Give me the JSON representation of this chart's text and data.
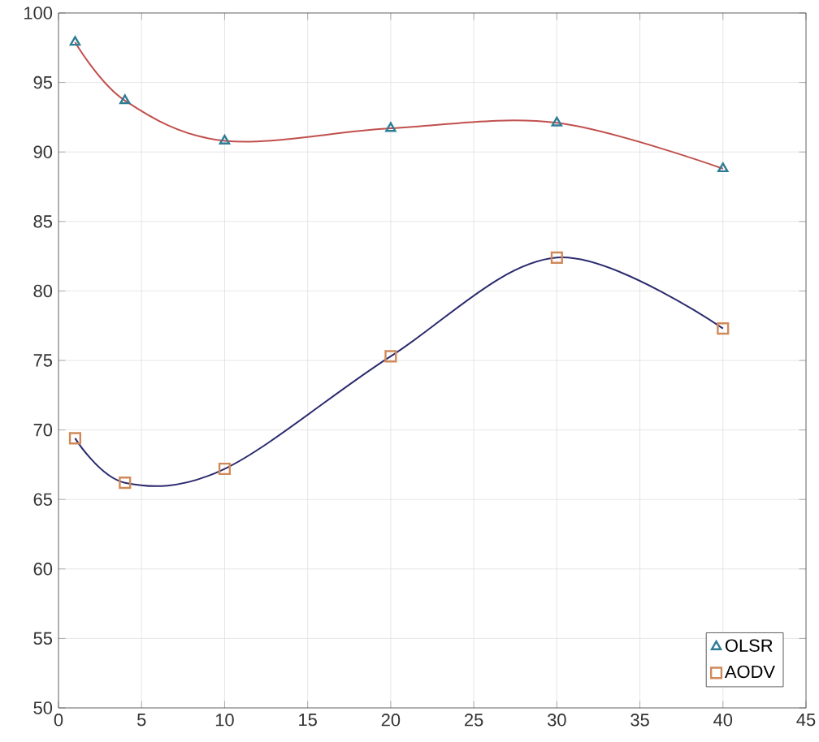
{
  "chart_data": {
    "type": "line",
    "xlim": [
      0,
      45
    ],
    "ylim": [
      50,
      100
    ],
    "xticks": [
      0,
      5,
      10,
      15,
      20,
      25,
      30,
      35,
      40,
      45
    ],
    "yticks": [
      50,
      55,
      60,
      65,
      70,
      75,
      80,
      85,
      90,
      95,
      100
    ],
    "grid": true,
    "legend": "bottom right",
    "series": [
      {
        "color": "#c0504d",
        "x": [
          1,
          4,
          10,
          20,
          30,
          40
        ],
        "values": [
          97.9,
          93.7,
          90.8,
          91.7,
          92.1,
          88.8
        ]
      },
      {
        "color": "#2a2a6e",
        "x": [
          1,
          4,
          10,
          20,
          30,
          40
        ],
        "values": [
          69.4,
          66.2,
          67.2,
          75.3,
          82.4,
          77.3
        ]
      },
      {
        "type": "scatter",
        "name": "OLSR",
        "color": "#2e7c96",
        "marker": "triangle",
        "x": [
          1,
          4,
          10,
          20,
          30,
          40
        ],
        "values": [
          97.9,
          93.7,
          90.8,
          91.7,
          92.1,
          88.8
        ]
      },
      {
        "type": "scatter",
        "name": "AODV",
        "color": "#d08a5a",
        "marker": "square",
        "x": [
          1,
          4,
          10,
          20,
          30,
          40
        ],
        "values": [
          69.4,
          66.2,
          67.2,
          75.3,
          82.4,
          77.3
        ]
      }
    ]
  }
}
